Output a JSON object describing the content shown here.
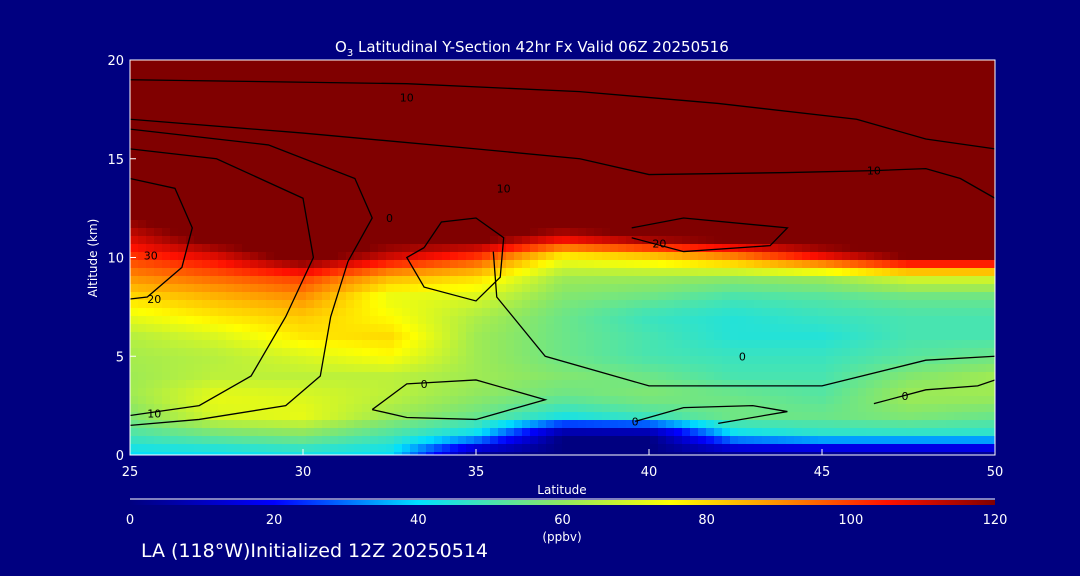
{
  "chart_data": {
    "type": "heatmap",
    "title_main": "O",
    "title_sub": "3",
    "title_rest": " Latitudinal Y-Section 42hr  Fx Valid 06Z 20250516",
    "xlabel": "Latitude",
    "ylabel": "Altitude (km)",
    "xlim": [
      25,
      50
    ],
    "ylim": [
      0,
      20
    ],
    "xticks": [
      "25",
      "30",
      "35",
      "40",
      "45",
      "50"
    ],
    "yticks": [
      "0",
      "5",
      "10",
      "15",
      "20"
    ],
    "lat": [
      25,
      27.5,
      30,
      32.5,
      35,
      37.5,
      40,
      42.5,
      45,
      47.5,
      50
    ],
    "alt": [
      0,
      1,
      2,
      3,
      4,
      5,
      6,
      7,
      8,
      9,
      10,
      11,
      12,
      13,
      14,
      15,
      16,
      17,
      18,
      19,
      20
    ],
    "o3_ppbv_by_lat": [
      [
        40,
        50,
        58,
        62,
        62,
        63,
        65,
        72,
        80,
        90,
        100,
        110,
        120,
        130,
        130,
        130,
        130,
        130,
        130,
        130,
        130
      ],
      [
        40,
        55,
        70,
        72,
        66,
        65,
        70,
        78,
        85,
        95,
        108,
        125,
        130,
        130,
        130,
        130,
        130,
        130,
        130,
        130,
        130
      ],
      [
        42,
        58,
        72,
        70,
        66,
        70,
        78,
        82,
        90,
        100,
        125,
        130,
        130,
        130,
        130,
        130,
        130,
        130,
        130,
        130,
        130
      ],
      [
        40,
        50,
        62,
        66,
        66,
        75,
        80,
        75,
        72,
        85,
        110,
        125,
        130,
        130,
        130,
        130,
        130,
        130,
        130,
        130,
        130
      ],
      [
        0,
        40,
        55,
        60,
        62,
        62,
        62,
        64,
        70,
        80,
        100,
        125,
        130,
        130,
        130,
        130,
        130,
        130,
        130,
        130,
        130
      ],
      [
        0,
        0,
        45,
        55,
        58,
        55,
        55,
        55,
        58,
        62,
        75,
        110,
        130,
        130,
        130,
        130,
        130,
        130,
        130,
        130,
        130
      ],
      [
        0,
        0,
        50,
        58,
        55,
        50,
        50,
        48,
        55,
        62,
        80,
        120,
        130,
        130,
        130,
        130,
        130,
        130,
        130,
        130,
        130
      ],
      [
        0,
        40,
        56,
        55,
        50,
        48,
        45,
        45,
        50,
        60,
        90,
        125,
        130,
        130,
        130,
        130,
        130,
        130,
        130,
        130,
        130
      ],
      [
        0,
        45,
        55,
        52,
        50,
        48,
        45,
        48,
        52,
        62,
        105,
        130,
        130,
        130,
        130,
        130,
        130,
        130,
        130,
        130,
        130
      ],
      [
        0,
        45,
        58,
        62,
        58,
        52,
        50,
        50,
        55,
        70,
        120,
        130,
        130,
        130,
        130,
        130,
        130,
        130,
        130,
        130,
        130
      ],
      [
        0,
        45,
        55,
        62,
        62,
        55,
        50,
        50,
        55,
        70,
        120,
        130,
        130,
        130,
        130,
        130,
        130,
        130,
        130,
        130,
        130
      ]
    ],
    "contours": [
      {
        "level": "10",
        "points": [
          [
            25,
            19
          ],
          [
            33,
            18.8
          ],
          [
            38,
            18.4
          ],
          [
            42,
            17.8
          ],
          [
            46,
            17
          ],
          [
            48,
            16
          ],
          [
            50,
            15.5
          ]
        ]
      },
      {
        "level": "10",
        "points": [
          [
            25,
            17
          ],
          [
            30,
            16.3
          ],
          [
            35,
            15.5
          ],
          [
            38,
            15
          ],
          [
            40,
            14.2
          ],
          [
            44,
            14.3
          ],
          [
            46.5,
            14.4
          ],
          [
            48,
            14.5
          ],
          [
            49,
            14
          ],
          [
            50,
            13
          ]
        ]
      },
      {
        "level": "10",
        "points": [
          [
            25,
            16.5
          ],
          [
            29,
            15.7
          ],
          [
            31.5,
            14
          ],
          [
            32,
            12
          ],
          [
            31.3,
            9.8
          ],
          [
            30.8,
            7
          ],
          [
            30.5,
            4
          ],
          [
            29.5,
            2.5
          ],
          [
            27,
            1.8
          ],
          [
            25,
            1.5
          ]
        ]
      },
      {
        "level": "10",
        "points": [
          [
            25,
            15.5
          ],
          [
            27.5,
            15
          ],
          [
            30,
            13
          ],
          [
            30.3,
            10
          ],
          [
            29.5,
            7
          ],
          [
            28.5,
            4
          ],
          [
            27,
            2.5
          ],
          [
            25,
            2
          ]
        ]
      },
      {
        "level": "0",
        "points": [
          [
            33.5,
            10.5
          ],
          [
            34,
            11.8
          ],
          [
            35,
            12
          ],
          [
            35.8,
            11
          ],
          [
            35.7,
            9
          ],
          [
            35,
            7.8
          ],
          [
            33.5,
            8.5
          ],
          [
            33,
            10
          ],
          [
            33.5,
            10.5
          ]
        ]
      },
      {
        "level": "20",
        "points": [
          [
            25,
            14
          ],
          [
            26.3,
            13.5
          ],
          [
            26.8,
            11.5
          ],
          [
            26.5,
            9.5
          ],
          [
            25.5,
            8
          ],
          [
            25,
            7.9
          ]
        ]
      },
      {
        "level": "20",
        "points": [
          [
            39.5,
            11.5
          ],
          [
            41,
            12
          ],
          [
            44,
            11.5
          ],
          [
            43.5,
            10.6
          ],
          [
            41,
            10.3
          ],
          [
            39.5,
            11
          ]
        ]
      },
      {
        "level": "0",
        "points": [
          [
            32,
            2.3
          ],
          [
            33,
            3.6
          ],
          [
            35,
            3.8
          ],
          [
            37,
            2.8
          ],
          [
            35,
            1.8
          ],
          [
            33,
            1.9
          ],
          [
            32,
            2.3
          ]
        ]
      },
      {
        "level": "0",
        "points": [
          [
            35.5,
            10.3
          ],
          [
            35.6,
            8
          ],
          [
            37,
            5
          ],
          [
            40,
            3.5
          ],
          [
            45,
            3.5
          ],
          [
            48,
            4.8
          ],
          [
            50,
            5
          ]
        ]
      },
      {
        "level": "0",
        "points": [
          [
            39.6,
            1.7
          ],
          [
            41,
            2.4
          ],
          [
            43,
            2.5
          ],
          [
            44,
            2.2
          ],
          [
            42,
            1.6
          ]
        ]
      },
      {
        "level": "0",
        "points": [
          [
            46.5,
            2.6
          ],
          [
            48,
            3.3
          ],
          [
            49.5,
            3.5
          ],
          [
            50,
            3.8
          ]
        ]
      }
    ],
    "contour_labels": [
      {
        "text": "10",
        "lat": 33,
        "alt": 18.1
      },
      {
        "text": "10",
        "lat": 35.8,
        "alt": 13.5
      },
      {
        "text": "10",
        "lat": 46.5,
        "alt": 14.4
      },
      {
        "text": "0",
        "lat": 32.5,
        "alt": 12
      },
      {
        "text": "20",
        "lat": 40.3,
        "alt": 10.7
      },
      {
        "text": "30",
        "lat": 25.6,
        "alt": 10.1
      },
      {
        "text": "20",
        "lat": 25.7,
        "alt": 7.9
      },
      {
        "text": "10",
        "lat": 25.7,
        "alt": 2.1
      },
      {
        "text": "0",
        "lat": 33.5,
        "alt": 3.6
      },
      {
        "text": "0",
        "lat": 42.7,
        "alt": 5
      },
      {
        "text": "0",
        "lat": 39.6,
        "alt": 1.7
      },
      {
        "text": "0",
        "lat": 47.4,
        "alt": 3
      }
    ],
    "colorbar": {
      "ticks": [
        "0",
        "20",
        "40",
        "60",
        "80",
        "100",
        "120"
      ],
      "range": [
        0,
        120
      ],
      "label": "(ppbv)",
      "stops": [
        [
          "0",
          "#000080"
        ],
        [
          "20",
          "#0000ff"
        ],
        [
          "40",
          "#00e0ff"
        ],
        [
          "60",
          "#90e860"
        ],
        [
          "75",
          "#ffff00"
        ],
        [
          "90",
          "#ff9000"
        ],
        [
          "105",
          "#ff1000"
        ],
        [
          "120",
          "#800000"
        ]
      ]
    }
  },
  "footer": "LA (118°W)Initialized 12Z 20250514"
}
